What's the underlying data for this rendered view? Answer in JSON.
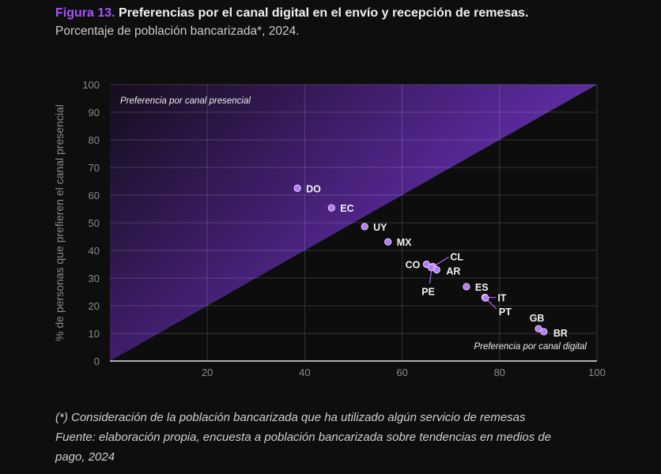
{
  "header": {
    "figure_label": "Figura 13.",
    "title": " Preferencias por el canal digital en el envío y recepción de remesas.",
    "subtitle": "Porcentaje de población bancarizada*, 2024."
  },
  "footer": {
    "note": "(*) Consideración de la población bancarizada que ha utilizado algún servicio de remesas",
    "source_line1": "Fuente: elaboración propia, encuesta a población bancarizada sobre tendencias en medios de",
    "source_line2": "pago, 2024"
  },
  "colors": {
    "background": "#0e0e0e",
    "accent": "#a855f7",
    "point": "#b57bf5",
    "region_top": "#6d32b8",
    "region_dark": "#1a1020",
    "grid": "#3a3a3a"
  },
  "chart_data": {
    "type": "scatter",
    "title": "Preferencias por el canal digital en el envío y recepción de remesas.",
    "xlabel": "",
    "ylabel": "% de personas que prefieren el canal presencial",
    "xlim": [
      0,
      100
    ],
    "ylim": [
      0,
      100
    ],
    "x_ticks": [
      20,
      40,
      60,
      80,
      100
    ],
    "y_ticks": [
      0,
      10,
      20,
      30,
      40,
      50,
      60,
      70,
      80,
      90,
      100
    ],
    "grid": true,
    "region_labels": {
      "upper": "Preferencia por canal presencial",
      "lower": "Preferencia por canal digital"
    },
    "points": [
      {
        "label": "DO",
        "x": 38.5,
        "y": 62.5
      },
      {
        "label": "EC",
        "x": 45.5,
        "y": 55.4
      },
      {
        "label": "UY",
        "x": 52.3,
        "y": 48.6
      },
      {
        "label": "MX",
        "x": 57.1,
        "y": 43.1
      },
      {
        "label": "CO",
        "x": 65.0,
        "y": 35.0
      },
      {
        "label": "CL",
        "x": 66.3,
        "y": 34.2
      },
      {
        "label": "PE",
        "x": 66.0,
        "y": 33.8
      },
      {
        "label": "AR",
        "x": 67.1,
        "y": 33.0
      },
      {
        "label": "ES",
        "x": 73.2,
        "y": 26.9
      },
      {
        "label": "IT",
        "x": 77.0,
        "y": 23.0
      },
      {
        "label": "PT",
        "x": 77.1,
        "y": 22.8
      },
      {
        "label": "GB",
        "x": 88.0,
        "y": 11.7
      },
      {
        "label": "BR",
        "x": 89.1,
        "y": 10.6
      }
    ]
  }
}
